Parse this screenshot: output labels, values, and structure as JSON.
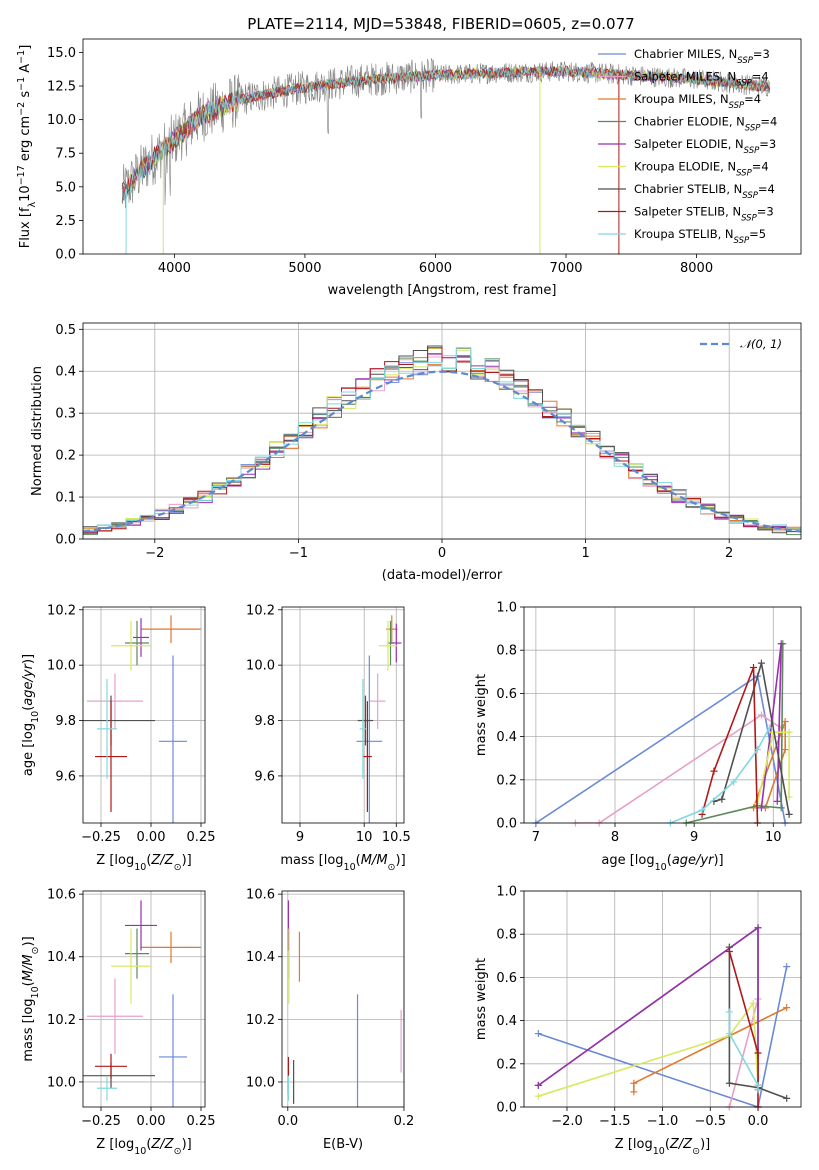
{
  "figure_title": "PLATE=2114, MJD=53848, FIBERID=0605, z=0.077",
  "colors": {
    "chabrier_miles": "#6a8ad8",
    "salpeter_miles": "#e8a0c8",
    "kroupa_miles": "#e07a30",
    "chabrier_elodie": "#5a8a5a",
    "salpeter_elodie": "#9a30b0",
    "kroupa_elodie": "#d8e860",
    "chabrier_stelib": "#505050",
    "salpeter_stelib": "#b01818",
    "kroupa_stelib": "#80d8e0",
    "normal": "#5a8ad0",
    "data_spectrum": "#808080"
  },
  "chart_data": [
    {
      "id": "spectrum",
      "type": "line",
      "title": "PLATE=2114, MJD=53848, FIBERID=0605, z=0.077",
      "xlabel": "wavelength [Angstrom, rest frame]",
      "ylabel_parts": [
        "Flux [f",
        "λ",
        "10",
        "−17",
        " erg cm",
        "−2",
        " s",
        "−1",
        " A",
        "−1",
        "]"
      ],
      "xlim": [
        3300,
        8800
      ],
      "ylim": [
        0,
        16
      ],
      "xticks": [
        4000,
        5000,
        6000,
        7000,
        8000
      ],
      "yticks": [
        0.0,
        2.5,
        5.0,
        7.5,
        10.0,
        12.5,
        15.0
      ],
      "ytick_labels": [
        "0.0",
        "2.5",
        "5.0",
        "7.5",
        "10.0",
        "12.5",
        "15.0"
      ],
      "legend": [
        {
          "imf": "Chabrier",
          "lib": "MILES",
          "n": "3",
          "color_key": "chabrier_miles"
        },
        {
          "imf": "Salpeter",
          "lib": "MILES",
          "n": "4",
          "color_key": "salpeter_miles"
        },
        {
          "imf": "Kroupa",
          "lib": "MILES",
          "n": "4",
          "color_key": "kroupa_miles"
        },
        {
          "imf": "Chabrier",
          "lib": "ELODIE",
          "n": "4",
          "color_key": "chabrier_elodie"
        },
        {
          "imf": "Salpeter",
          "lib": "ELODIE",
          "n": "3",
          "color_key": "salpeter_elodie"
        },
        {
          "imf": "Kroupa",
          "lib": "ELODIE",
          "n": "4",
          "color_key": "kroupa_elodie"
        },
        {
          "imf": "Chabrier",
          "lib": "STELIB",
          "n": "4",
          "color_key": "chabrier_stelib"
        },
        {
          "imf": "Salpeter",
          "lib": "STELIB",
          "n": "3",
          "color_key": "salpeter_stelib"
        },
        {
          "imf": "Kroupa",
          "lib": "STELIB",
          "n": "5",
          "color_key": "kroupa_stelib"
        }
      ],
      "legend_label_mid": " MILES, N",
      "legend_sub": "SSP",
      "continuum": [
        [
          3600,
          4.5
        ],
        [
          3800,
          6.8
        ],
        [
          4000,
          8.5
        ],
        [
          4200,
          10.3
        ],
        [
          4500,
          11.5
        ],
        [
          5000,
          12.4
        ],
        [
          5500,
          13.0
        ],
        [
          6000,
          13.3
        ],
        [
          6500,
          13.5
        ],
        [
          7000,
          13.6
        ],
        [
          7500,
          13.3
        ],
        [
          8000,
          13.0
        ],
        [
          8500,
          12.5
        ]
      ]
    },
    {
      "id": "residuals",
      "type": "line",
      "xlabel": "(data-model)/error",
      "ylabel": "Normed distribution",
      "xlim": [
        -2.5,
        2.5
      ],
      "ylim": [
        0,
        0.515
      ],
      "xticks": [
        -2,
        -1,
        0,
        1,
        2
      ],
      "xtick_labels": [
        "−2",
        "−1",
        "0",
        "1",
        "2"
      ],
      "yticks": [
        0.0,
        0.1,
        0.2,
        0.3,
        0.4,
        0.5
      ],
      "ytick_labels": [
        "0.0",
        "0.1",
        "0.2",
        "0.3",
        "0.4",
        "0.5"
      ],
      "legend": "𝒩(0, 1)",
      "normal_curve": {
        "mean": 0,
        "sigma": 1
      }
    },
    {
      "id": "age_vs_Z",
      "type": "scatter",
      "xlabel": "Z [log",
      "ylabel": "age  [log",
      "xlim": [
        -0.34,
        0.27
      ],
      "ylim": [
        9.43,
        10.21
      ],
      "xticks": [
        -0.25,
        0.0,
        0.25
      ],
      "xtick_labels": [
        "−0.25",
        "0.00",
        "0.25"
      ],
      "yticks": [
        9.6,
        9.8,
        10.0,
        10.2
      ],
      "ytick_labels": [
        "9.6",
        "9.8",
        "10.0",
        "10.2"
      ],
      "points": [
        {
          "k": "chabrier_miles",
          "x": 0.11,
          "y": 9.725,
          "xerr": 0.07,
          "yerr": 0.31
        },
        {
          "k": "salpeter_miles",
          "x": -0.18,
          "y": 9.87,
          "xerr": 0.14,
          "yerr": 0.1
        },
        {
          "k": "kroupa_miles",
          "x": 0.1,
          "y": 10.13,
          "xerr": 0.15,
          "yerr": 0.05
        },
        {
          "k": "chabrier_elodie",
          "x": -0.07,
          "y": 10.08,
          "xerr": 0.06,
          "yerr": 0.08
        },
        {
          "k": "salpeter_elodie",
          "x": -0.05,
          "y": 10.1,
          "xerr": 0.04,
          "yerr": 0.07
        },
        {
          "k": "kroupa_elodie",
          "x": -0.1,
          "y": 10.07,
          "xerr": 0.1,
          "yerr": 0.09
        },
        {
          "k": "chabrier_stelib",
          "x": -0.2,
          "y": 9.8,
          "xerr": 0.22,
          "yerr": 0.09
        },
        {
          "k": "salpeter_stelib",
          "x": -0.2,
          "y": 9.67,
          "xerr": 0.08,
          "yerr": 0.2
        },
        {
          "k": "kroupa_stelib",
          "x": -0.22,
          "y": 9.77,
          "xerr": 0.05,
          "yerr": 0.18
        }
      ]
    },
    {
      "id": "age_vs_mass",
      "type": "scatter",
      "xlabel": "mass [log",
      "xlim": [
        8.72,
        10.62
      ],
      "ylim": [
        9.43,
        10.21
      ],
      "xticks": [
        9,
        10,
        10.5
      ],
      "xtick_labels": [
        "9",
        "10",
        "10.5"
      ],
      "yticks": [
        9.6,
        9.8,
        10.0,
        10.2
      ],
      "ytick_labels": [
        "9.6",
        "9.8",
        "10.0",
        "10.2"
      ],
      "points": [
        {
          "k": "chabrier_miles",
          "x": 10.08,
          "y": 9.725,
          "xerr": 0.2,
          "yerr": 0.31
        },
        {
          "k": "salpeter_miles",
          "x": 10.21,
          "y": 9.87,
          "xerr": 0.12,
          "yerr": 0.1
        },
        {
          "k": "kroupa_miles",
          "x": 10.43,
          "y": 10.13,
          "xerr": 0.09,
          "yerr": 0.05
        },
        {
          "k": "chabrier_elodie",
          "x": 10.41,
          "y": 10.08,
          "xerr": 0.05,
          "yerr": 0.08
        },
        {
          "k": "salpeter_elodie",
          "x": 10.5,
          "y": 10.08,
          "xerr": 0.08,
          "yerr": 0.07
        },
        {
          "k": "kroupa_elodie",
          "x": 10.37,
          "y": 10.07,
          "xerr": 0.14,
          "yerr": 0.09
        },
        {
          "k": "chabrier_stelib",
          "x": 10.02,
          "y": 9.8,
          "xerr": 0.12,
          "yerr": 0.09
        },
        {
          "k": "salpeter_stelib",
          "x": 10.05,
          "y": 9.67,
          "xerr": 0.07,
          "yerr": 0.2
        },
        {
          "k": "kroupa_stelib",
          "x": 9.98,
          "y": 9.77,
          "xerr": 0.05,
          "yerr": 0.18
        }
      ]
    },
    {
      "id": "weight_vs_age",
      "type": "line",
      "xlabel": "age  [log",
      "ylabel": "mass weight",
      "xlim": [
        6.85,
        10.35
      ],
      "ylim": [
        0,
        1
      ],
      "xticks": [
        7,
        8,
        9,
        10
      ],
      "xtick_labels": [
        "7",
        "8",
        "9",
        "10"
      ],
      "yticks": [
        0.0,
        0.2,
        0.4,
        0.6,
        0.8,
        1.0
      ],
      "ytick_labels": [
        "0.0",
        "0.2",
        "0.4",
        "0.6",
        "0.8",
        "1.0"
      ],
      "series": [
        {
          "k": "chabrier_miles",
          "points": [
            [
              7.0,
              0.0
            ],
            [
              9.8,
              0.68
            ],
            [
              10.15,
              0.0
            ]
          ]
        },
        {
          "k": "salpeter_miles",
          "points": [
            [
              7.5,
              0.0
            ],
            [
              7.8,
              0.0
            ],
            [
              9.85,
              0.5
            ],
            [
              10.1,
              0.44
            ]
          ]
        },
        {
          "k": "kroupa_miles",
          "points": [
            [
              9.75,
              0.07
            ],
            [
              10.15,
              0.47
            ],
            [
              10.15,
              0.34
            ],
            [
              9.9,
              0.07
            ]
          ]
        },
        {
          "k": "chabrier_elodie",
          "points": [
            [
              8.9,
              0.0
            ],
            [
              9.8,
              0.08
            ],
            [
              10.1,
              0.07
            ],
            [
              10.12,
              0.83
            ]
          ]
        },
        {
          "k": "salpeter_elodie",
          "points": [
            [
              9.85,
              0.07
            ],
            [
              10.1,
              0.83
            ],
            [
              10.05,
              0.1
            ]
          ]
        },
        {
          "k": "kroupa_elodie",
          "points": [
            [
              9.8,
              0.09
            ],
            [
              10.0,
              0.42
            ],
            [
              10.2,
              0.42
            ],
            [
              10.2,
              0.12
            ]
          ]
        },
        {
          "k": "chabrier_stelib",
          "points": [
            [
              9.25,
              0.1
            ],
            [
              9.35,
              0.11
            ],
            [
              9.85,
              0.74
            ],
            [
              10.2,
              0.04
            ]
          ]
        },
        {
          "k": "salpeter_stelib",
          "points": [
            [
              9.1,
              0.04
            ],
            [
              9.25,
              0.24
            ],
            [
              9.75,
              0.72
            ],
            [
              9.8,
              0.0
            ]
          ]
        },
        {
          "k": "kroupa_stelib",
          "points": [
            [
              8.7,
              0.0
            ],
            [
              9.1,
              0.06
            ],
            [
              9.5,
              0.19
            ],
            [
              9.8,
              0.34
            ],
            [
              9.95,
              0.44
            ]
          ]
        }
      ]
    },
    {
      "id": "mass_vs_Z",
      "type": "scatter",
      "xlabel": "Z [log",
      "ylabel": "mass [log",
      "xlim": [
        -0.34,
        0.27
      ],
      "ylim": [
        9.92,
        10.61
      ],
      "xticks": [
        -0.25,
        0.0,
        0.25
      ],
      "xtick_labels": [
        "−0.25",
        "0.00",
        "0.25"
      ],
      "yticks": [
        10.0,
        10.2,
        10.4,
        10.6
      ],
      "ytick_labels": [
        "10.0",
        "10.2",
        "10.4",
        "10.6"
      ],
      "points": [
        {
          "k": "chabrier_miles",
          "x": 0.11,
          "y": 10.08,
          "xerr": 0.07,
          "yerr": 0.2
        },
        {
          "k": "salpeter_miles",
          "x": -0.18,
          "y": 10.21,
          "xerr": 0.14,
          "yerr": 0.12
        },
        {
          "k": "kroupa_miles",
          "x": 0.1,
          "y": 10.43,
          "xerr": 0.15,
          "yerr": 0.05
        },
        {
          "k": "chabrier_elodie",
          "x": -0.07,
          "y": 10.41,
          "xerr": 0.06,
          "yerr": 0.08
        },
        {
          "k": "salpeter_elodie",
          "x": -0.05,
          "y": 10.5,
          "xerr": 0.08,
          "yerr": 0.08
        },
        {
          "k": "kroupa_elodie",
          "x": -0.1,
          "y": 10.37,
          "xerr": 0.1,
          "yerr": 0.12
        },
        {
          "k": "chabrier_stelib",
          "x": -0.2,
          "y": 10.02,
          "xerr": 0.22,
          "yerr": 0.04
        },
        {
          "k": "salpeter_stelib",
          "x": -0.2,
          "y": 10.05,
          "xerr": 0.08,
          "yerr": 0.04
        },
        {
          "k": "kroupa_stelib",
          "x": -0.22,
          "y": 9.98,
          "xerr": 0.05,
          "yerr": 0.04
        }
      ]
    },
    {
      "id": "mass_vs_ebv",
      "type": "scatter",
      "xlabel": "E(B-V)",
      "xlim": [
        -0.01,
        0.2
      ],
      "ylim": [
        9.92,
        10.61
      ],
      "xticks": [
        0.0,
        0.2
      ],
      "xtick_labels": [
        "0.0",
        "0.2"
      ],
      "yticks": [
        10.0,
        10.2,
        10.4,
        10.6
      ],
      "ytick_labels": [
        "10.0",
        "10.2",
        "10.4",
        "10.6"
      ],
      "points": [
        {
          "k": "chabrier_miles",
          "x": 0.12,
          "y": 10.08,
          "xerr": 0,
          "yerr": 0.2
        },
        {
          "k": "salpeter_miles",
          "x": 0.195,
          "y": 10.13,
          "xerr": 0,
          "yerr": 0.1
        },
        {
          "k": "kroupa_miles",
          "x": 0.02,
          "y": 10.4,
          "xerr": 0,
          "yerr": 0.08
        },
        {
          "k": "chabrier_elodie",
          "x": 0.002,
          "y": 10.41,
          "xerr": 0,
          "yerr": 0.08
        },
        {
          "k": "salpeter_elodie",
          "x": 0.001,
          "y": 10.5,
          "xerr": 0,
          "yerr": 0.08
        },
        {
          "k": "kroupa_elodie",
          "x": 0.002,
          "y": 10.37,
          "xerr": 0,
          "yerr": 0.12
        },
        {
          "k": "chabrier_stelib",
          "x": 0.01,
          "y": 10.0,
          "xerr": 0,
          "yerr": 0.07
        },
        {
          "k": "salpeter_stelib",
          "x": 0.001,
          "y": 10.02,
          "xerr": 0,
          "yerr": 0.06
        },
        {
          "k": "kroupa_stelib",
          "x": 0.001,
          "y": 9.98,
          "xerr": 0,
          "yerr": 0.04
        }
      ]
    },
    {
      "id": "weight_vs_Z",
      "type": "line",
      "xlabel": "Z [log",
      "ylabel": "mass weight",
      "xlim": [
        -2.45,
        0.45
      ],
      "ylim": [
        0,
        1
      ],
      "xticks": [
        -2.0,
        -1.5,
        -1.0,
        -0.5,
        0.0
      ],
      "xtick_labels": [
        "−2.0",
        "−1.5",
        "−1.0",
        "−0.5",
        "0.0"
      ],
      "yticks": [
        0.0,
        0.2,
        0.4,
        0.6,
        0.8,
        1.0
      ],
      "ytick_labels": [
        "0.0",
        "0.2",
        "0.4",
        "0.6",
        "0.8",
        "1.0"
      ],
      "series": [
        {
          "k": "chabrier_miles",
          "points": [
            [
              -2.3,
              0.34
            ],
            [
              0.0,
              0.0
            ],
            [
              0.3,
              0.65
            ]
          ]
        },
        {
          "k": "salpeter_miles",
          "points": [
            [
              -0.3,
              0.0
            ],
            [
              -0.3,
              0.0
            ],
            [
              0.0,
              0.5
            ]
          ]
        },
        {
          "k": "kroupa_miles",
          "points": [
            [
              -1.3,
              0.07
            ],
            [
              -1.3,
              0.11
            ],
            [
              0.3,
              0.46
            ]
          ]
        },
        {
          "k": "chabrier_elodie",
          "points": [
            [
              -2.3,
              0.1
            ],
            [
              0.0,
              0.83
            ],
            [
              0.0,
              0.08
            ]
          ]
        },
        {
          "k": "salpeter_elodie",
          "points": [
            [
              -2.3,
              0.1
            ],
            [
              0.0,
              0.83
            ],
            [
              0.0,
              0.1
            ]
          ]
        },
        {
          "k": "kroupa_elodie",
          "points": [
            [
              -2.3,
              0.05
            ],
            [
              -0.3,
              0.33
            ],
            [
              -0.05,
              0.48
            ],
            [
              0.0,
              0.1
            ]
          ]
        },
        {
          "k": "chabrier_stelib",
          "points": [
            [
              -0.3,
              0.74
            ],
            [
              -0.3,
              0.11
            ],
            [
              0.0,
              0.09
            ],
            [
              0.3,
              0.04
            ]
          ]
        },
        {
          "k": "salpeter_stelib",
          "points": [
            [
              -0.3,
              0.72
            ],
            [
              0.0,
              0.25
            ],
            [
              0.0,
              0.0
            ]
          ]
        },
        {
          "k": "kroupa_stelib",
          "points": [
            [
              -0.3,
              0.44
            ],
            [
              -0.3,
              0.34
            ],
            [
              0.0,
              0.1
            ],
            [
              0.0,
              0.08
            ]
          ]
        }
      ]
    }
  ]
}
